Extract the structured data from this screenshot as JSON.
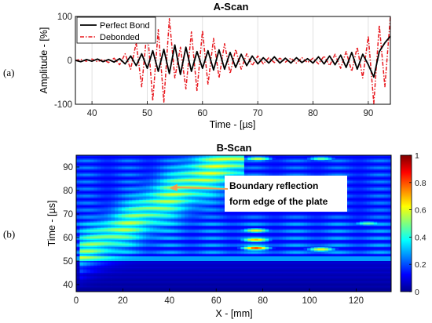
{
  "chart_data": [
    {
      "type": "line",
      "panel_label": "(a)",
      "title": "A-Scan",
      "xlabel": "Time - [µs]",
      "ylabel": "Amplitude - [%]",
      "xlim": [
        37,
        94
      ],
      "ylim": [
        -100,
        100
      ],
      "xticks": [
        "40",
        "50",
        "60",
        "70",
        "80",
        "90"
      ],
      "xtick_values": [
        40,
        50,
        60,
        70,
        80,
        90
      ],
      "yticks": [
        "-100",
        "0",
        "100"
      ],
      "ytick_values": [
        -100,
        0,
        100
      ],
      "grid": true,
      "legend_position": "top-left",
      "series": [
        {
          "name": "Perfect Bond",
          "color": "#000000",
          "style": "solid",
          "x": [
            37,
            38,
            39,
            40,
            41,
            42,
            43,
            44,
            45,
            46,
            47,
            48,
            49,
            50,
            51,
            52,
            53,
            54,
            55,
            56,
            57,
            58,
            59,
            60,
            61,
            62,
            63,
            64,
            65,
            66,
            67,
            68,
            69,
            70,
            71,
            72,
            73,
            74,
            75,
            76,
            77,
            78,
            79,
            80,
            81,
            82,
            83,
            84,
            85,
            86,
            87,
            88,
            89,
            90,
            91,
            92,
            93,
            94
          ],
          "y": [
            0,
            -3,
            2,
            -2,
            3,
            -3,
            2,
            -4,
            4,
            -8,
            10,
            -12,
            15,
            -18,
            22,
            -25,
            25,
            -30,
            35,
            -32,
            30,
            -25,
            20,
            -18,
            22,
            -22,
            24,
            -20,
            18,
            -16,
            14,
            -12,
            10,
            -8,
            6,
            -6,
            8,
            -6,
            5,
            -6,
            6,
            -5,
            4,
            -6,
            8,
            -8,
            10,
            -10,
            12,
            -16,
            18,
            -20,
            14,
            -10,
            -38,
            20,
            40,
            55
          ]
        },
        {
          "name": "Debonded",
          "color": "#e8191f",
          "style": "dash-dot",
          "x": [
            37,
            38,
            39,
            40,
            41,
            42,
            43,
            44,
            45,
            46,
            47,
            48,
            49,
            50,
            51,
            52,
            53,
            54,
            55,
            56,
            57,
            58,
            59,
            60,
            61,
            62,
            63,
            64,
            65,
            66,
            67,
            68,
            69,
            70,
            71,
            72,
            73,
            74,
            75,
            76,
            77,
            78,
            79,
            80,
            81,
            82,
            83,
            84,
            85,
            86,
            87,
            88,
            89,
            90,
            91,
            92,
            93,
            94
          ],
          "y": [
            0,
            2,
            -2,
            3,
            -3,
            2,
            -5,
            5,
            -10,
            15,
            -20,
            40,
            -60,
            75,
            -92,
            70,
            -95,
            95,
            -40,
            30,
            -65,
            65,
            -70,
            68,
            -55,
            50,
            -40,
            38,
            -30,
            25,
            -20,
            15,
            -12,
            10,
            -8,
            6,
            -5,
            5,
            -4,
            5,
            -6,
            6,
            -5,
            5,
            -8,
            10,
            -12,
            14,
            -18,
            20,
            -25,
            30,
            -40,
            55,
            -98,
            80,
            -60,
            100
          ]
        }
      ]
    },
    {
      "type": "heatmap",
      "panel_label": "(b)",
      "title": "B-Scan",
      "xlabel": "X - [mm]",
      "ylabel": "Time - [µs]",
      "xlim": [
        0,
        135
      ],
      "ylim": [
        37,
        95
      ],
      "xticks": [
        "0",
        "20",
        "40",
        "60",
        "80",
        "100",
        "120"
      ],
      "xtick_values": [
        0,
        20,
        40,
        60,
        80,
        100,
        120
      ],
      "yticks": [
        "40",
        "50",
        "60",
        "70",
        "80",
        "90"
      ],
      "ytick_values": [
        40,
        50,
        60,
        70,
        80,
        90
      ],
      "colorbar": {
        "range": [
          0,
          1
        ],
        "ticks": [
          "0",
          "0.2",
          "0.4",
          "0.6",
          "0.8",
          "1"
        ],
        "tick_values": [
          0,
          0.2,
          0.4,
          0.6,
          0.8,
          1
        ],
        "colormap": "jet"
      },
      "annotation": {
        "line1": "Boundary reflection",
        "line2": "form edge of the plate",
        "arrow_color": "#f0a050",
        "arrow_target": [
          40,
          81
        ]
      },
      "features": {
        "diagonal_band": {
          "from": [
            5,
            55
          ],
          "to": [
            68,
            95
          ]
        },
        "bright_spots": [
          {
            "x": 77,
            "y": 55.5,
            "value": 0.85
          },
          {
            "x": 77,
            "y": 59,
            "value": 0.7
          },
          {
            "x": 77,
            "y": 63,
            "value": 0.6
          },
          {
            "x": 105,
            "y": 55,
            "value": 0.65
          },
          {
            "x": 78,
            "y": 93.5,
            "value": 0.6
          },
          {
            "x": 105,
            "y": 93.5,
            "value": 0.5
          },
          {
            "x": 125,
            "y": 66,
            "value": 0.45
          }
        ]
      }
    }
  ]
}
